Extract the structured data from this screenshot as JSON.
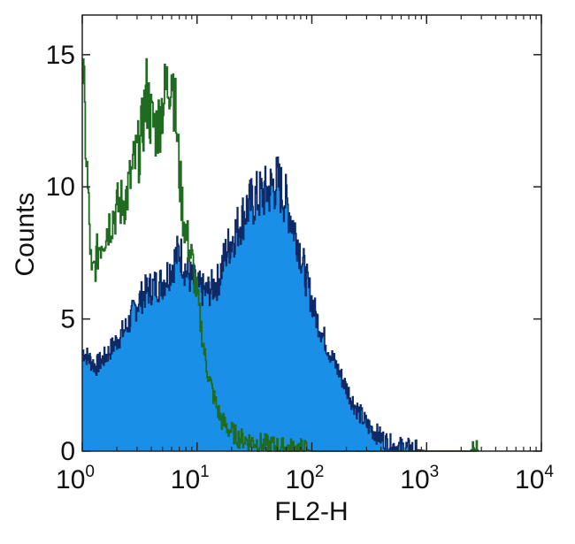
{
  "chart_data": {
    "type": "area",
    "title": "",
    "xlabel": "FL2-H",
    "ylabel": "Counts",
    "xscale": "log",
    "xlim": [
      1,
      10000
    ],
    "ylim": [
      0,
      16.5
    ],
    "grid": false,
    "x_ticks": [
      {
        "base": "10",
        "exp": "0",
        "value": 1
      },
      {
        "base": "10",
        "exp": "1",
        "value": 10
      },
      {
        "base": "10",
        "exp": "2",
        "value": 100
      },
      {
        "base": "10",
        "exp": "3",
        "value": 1000
      },
      {
        "base": "10",
        "exp": "4",
        "value": 10000
      }
    ],
    "y_ticks": [
      {
        "label": "0",
        "value": 0
      },
      {
        "label": "5",
        "value": 5
      },
      {
        "label": "10",
        "value": 10
      },
      {
        "label": "15",
        "value": 15
      }
    ],
    "series": [
      {
        "color": "#1a8fe8",
        "stroke": "#0d2a66",
        "fill": true,
        "x": [
          1,
          1.3,
          1.6,
          2,
          2.5,
          3,
          3.5,
          4,
          5,
          6,
          7,
          8,
          10,
          12,
          15,
          18,
          22,
          27,
          33,
          40,
          50,
          60,
          75,
          90,
          110,
          140,
          180,
          230,
          300,
          400,
          500,
          700,
          1000
        ],
        "y": [
          3.8,
          3.2,
          3.6,
          4.2,
          4.8,
          5.6,
          6.0,
          6.2,
          6.4,
          7.0,
          7.6,
          6.8,
          6.2,
          6.0,
          6.4,
          7.6,
          8.4,
          9.2,
          9.6,
          9.8,
          10.2,
          9.4,
          8.0,
          6.4,
          5.0,
          3.8,
          2.8,
          1.8,
          1.0,
          0.5,
          0.2,
          0.1,
          0
        ]
      },
      {
        "color": "#1f6b1f",
        "fill": false,
        "x": [
          1,
          1.2,
          1.4,
          1.7,
          2,
          2.4,
          2.8,
          3.2,
          3.6,
          4,
          4.5,
          5,
          5.5,
          6,
          6.5,
          7,
          7.5,
          8,
          9,
          10,
          11,
          12,
          14,
          16,
          19,
          23,
          28,
          35,
          45,
          60,
          80,
          100,
          2400,
          2600,
          2800
        ],
        "y": [
          14.5,
          6.5,
          7.8,
          8.6,
          9.2,
          9.6,
          10.8,
          11.6,
          13.6,
          12.4,
          12.2,
          13.2,
          13.8,
          14.6,
          12.6,
          10.4,
          9.0,
          8.2,
          7.2,
          5.8,
          4.4,
          3.2,
          2.0,
          1.2,
          0.8,
          0.5,
          0.4,
          0.3,
          0.2,
          0.1,
          0.1,
          0,
          0,
          0.2,
          0
        ]
      }
    ]
  }
}
